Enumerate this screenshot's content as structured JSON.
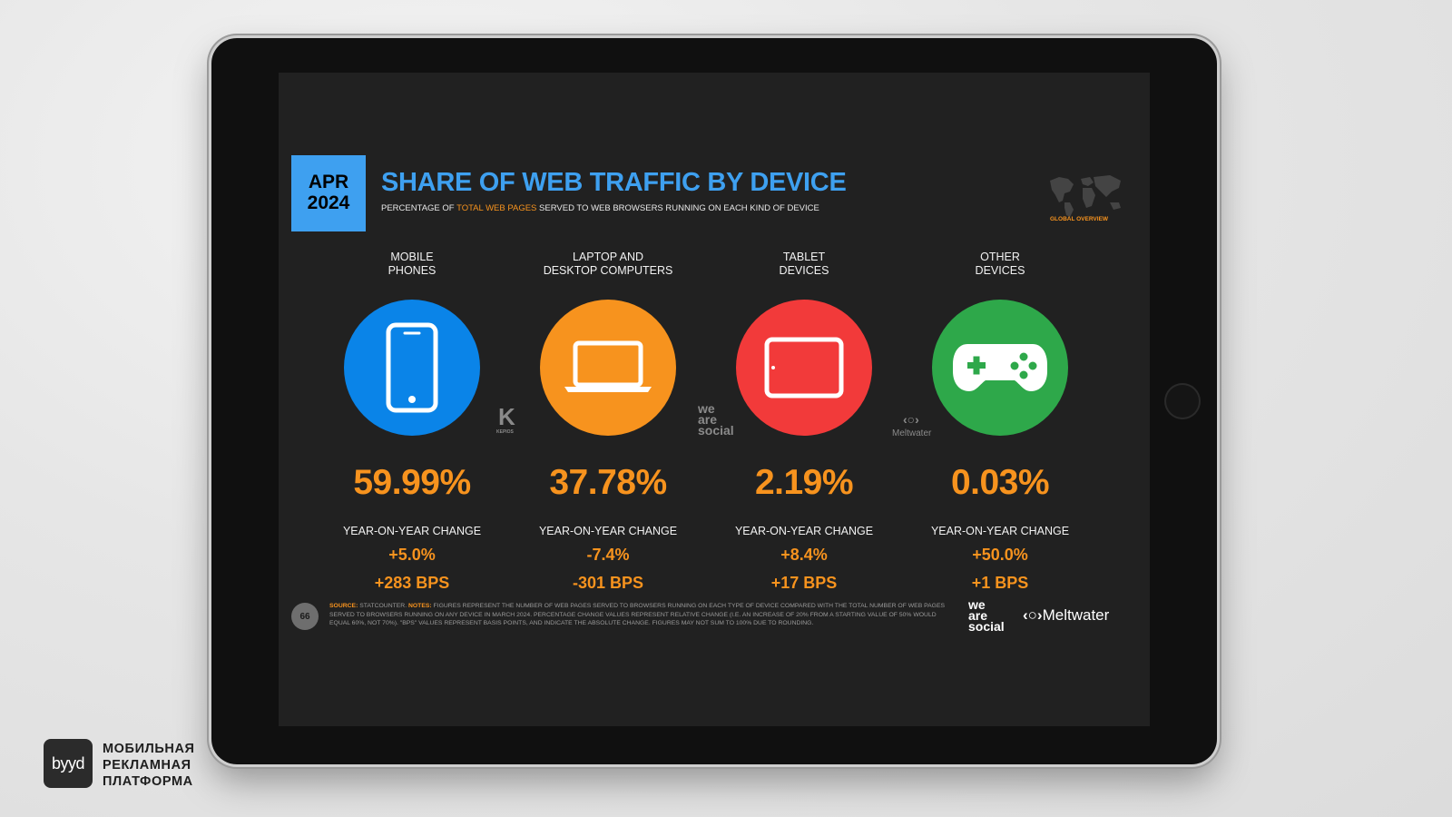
{
  "chart_data": {
    "type": "table",
    "title": "SHARE OF WEB TRAFFIC BY DEVICE",
    "subtitle_before": "PERCENTAGE OF ",
    "subtitle_highlight": "TOTAL WEB PAGES",
    "subtitle_after": " SERVED TO WEB BROWSERS RUNNING ON EACH KIND OF DEVICE",
    "date": [
      "APR",
      "2024"
    ],
    "region_label": "GLOBAL OVERVIEW",
    "yoy_label": "YEAR-ON-YEAR CHANGE",
    "categories": [
      {
        "label_lines": [
          "MOBILE",
          "PHONES"
        ],
        "share": "59.99%",
        "yoy_change": "+5.0%",
        "bps_change": "+283 BPS",
        "icon": "mobile-phone-icon",
        "color": "#0a84e8"
      },
      {
        "label_lines": [
          "LAPTOP AND",
          "DESKTOP COMPUTERS"
        ],
        "share": "37.78%",
        "yoy_change": "-7.4%",
        "bps_change": "-301 BPS",
        "icon": "laptop-icon",
        "color": "#f7931e"
      },
      {
        "label_lines": [
          "TABLET",
          "DEVICES"
        ],
        "share": "2.19%",
        "yoy_change": "+8.4%",
        "bps_change": "+17 BPS",
        "icon": "tablet-icon",
        "color": "#f23a3a"
      },
      {
        "label_lines": [
          "OTHER",
          "DEVICES"
        ],
        "share": "0.03%",
        "yoy_change": "+50.0%",
        "bps_change": "+1 BPS",
        "icon": "gamepad-icon",
        "color": "#2ea84a"
      }
    ]
  },
  "footer": {
    "page_number": "66",
    "source_key": "SOURCE:",
    "source_value": " STATCOUNTER. ",
    "notes_key": "NOTES:",
    "notes_value": " FIGURES REPRESENT THE NUMBER OF WEB PAGES SERVED TO BROWSERS RUNNING ON EACH TYPE OF DEVICE COMPARED WITH THE TOTAL NUMBER OF WEB PAGES SERVED TO BROWSERS RUNNING ON ANY DEVICE IN MARCH 2024. PERCENTAGE CHANGE VALUES REPRESENT RELATIVE CHANGE (I.E. AN INCREASE OF 20% FROM A STARTING VALUE OF 50% WOULD EQUAL 60%, NOT 70%). \"BPS\" VALUES REPRESENT BASIS POINTS, AND INDICATE THE ABSOLUTE CHANGE. FIGURES MAY NOT SUM TO 100% DUE TO ROUNDING."
  },
  "logos": {
    "kepios": "KEPIOS",
    "we_are_social": [
      "we",
      "are",
      "social"
    ],
    "meltwater": "Meltwater"
  },
  "brand": {
    "byyd": "byyd",
    "tagline": [
      "МОБИЛЬНАЯ",
      "РЕКЛАМНАЯ",
      "ПЛАТФОРМА"
    ]
  }
}
